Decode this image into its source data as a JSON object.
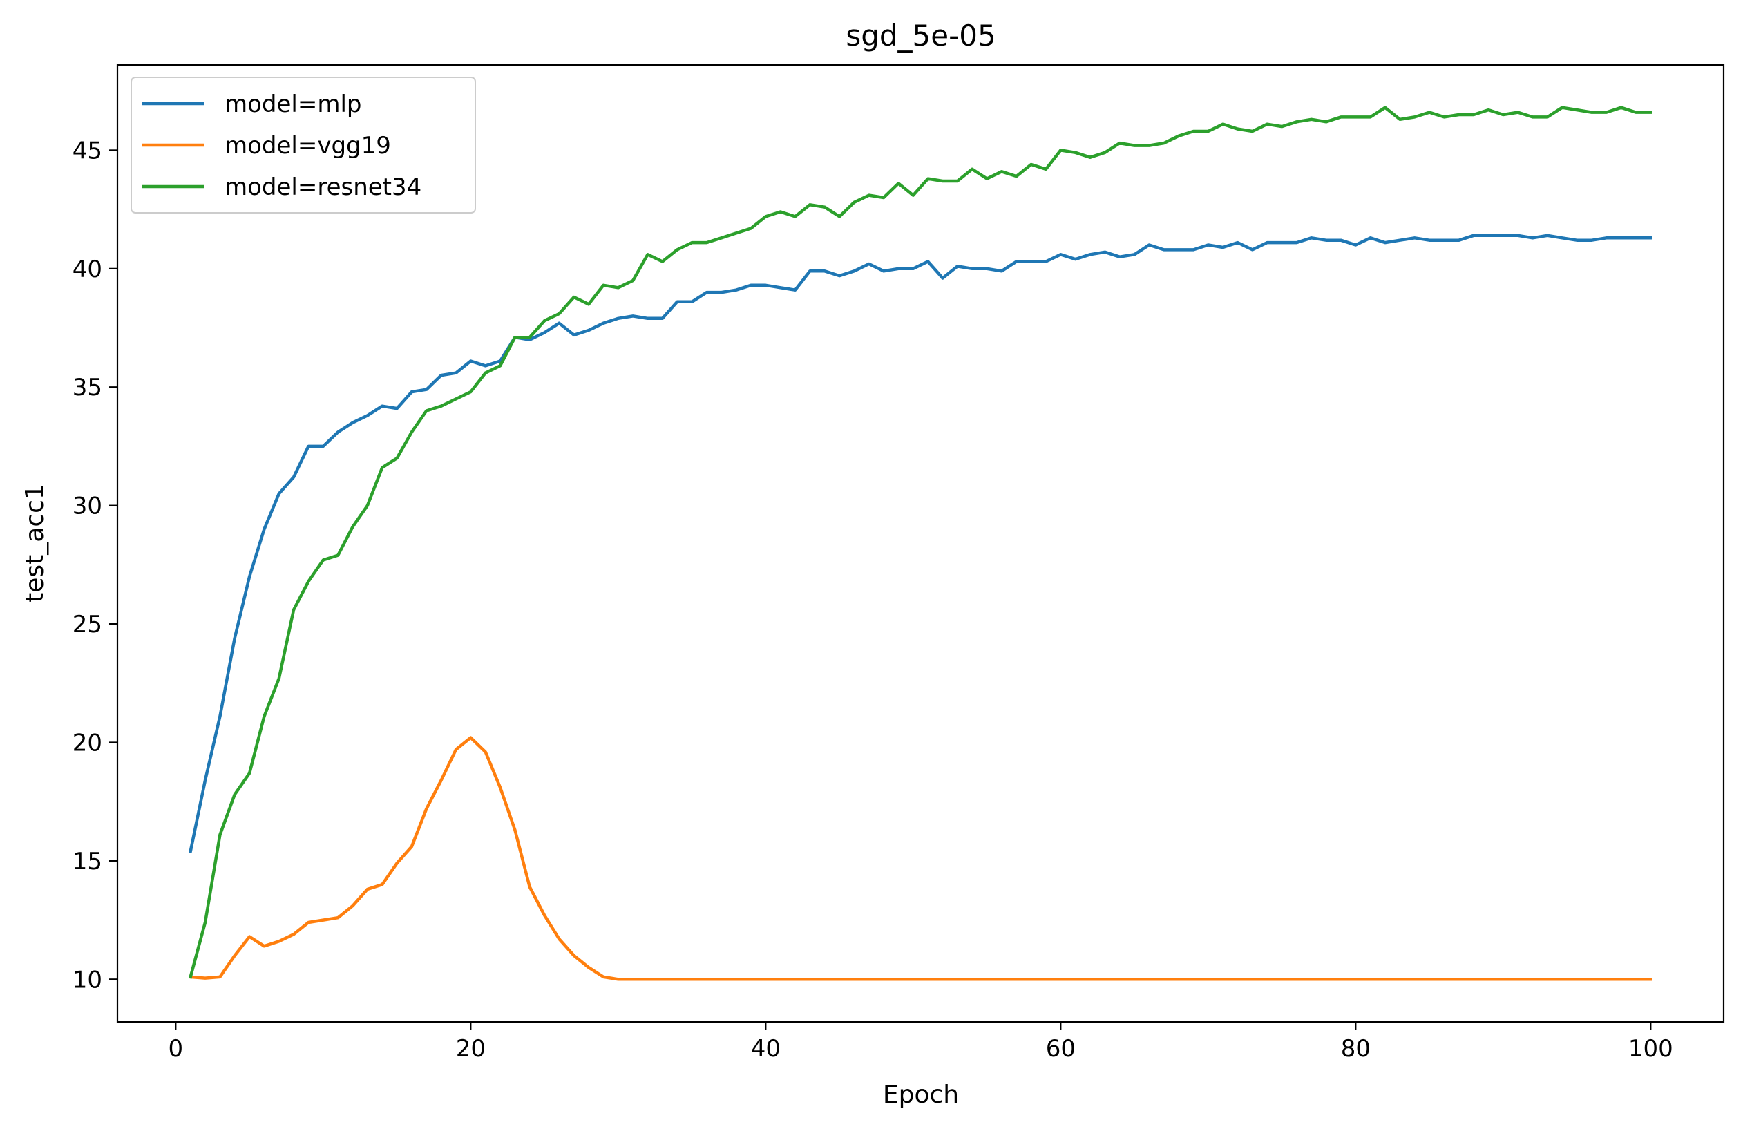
{
  "chart_data": {
    "type": "line",
    "title": "sgd_5e-05",
    "xlabel": "Epoch",
    "ylabel": "test_acc1",
    "xlim": [
      -3.95,
      104.95
    ],
    "ylim": [
      8.2,
      48.6
    ],
    "xticks": [
      0,
      20,
      40,
      60,
      80,
      100
    ],
    "yticks": [
      10,
      15,
      20,
      25,
      30,
      35,
      40,
      45
    ],
    "grid": false,
    "legend_position": "upper-left",
    "series": [
      {
        "name": "model=mlp",
        "color": "#1f77b4",
        "x": [
          1,
          2,
          3,
          4,
          5,
          6,
          7,
          8,
          9,
          10,
          11,
          12,
          13,
          14,
          15,
          16,
          17,
          18,
          19,
          20,
          21,
          22,
          23,
          24,
          25,
          26,
          27,
          28,
          29,
          30,
          31,
          32,
          33,
          34,
          35,
          36,
          37,
          38,
          39,
          40,
          41,
          42,
          43,
          44,
          45,
          46,
          47,
          48,
          49,
          50,
          51,
          52,
          53,
          54,
          55,
          56,
          57,
          58,
          59,
          60,
          61,
          62,
          63,
          64,
          65,
          66,
          67,
          68,
          69,
          70,
          71,
          72,
          73,
          74,
          75,
          76,
          77,
          78,
          79,
          80,
          81,
          82,
          83,
          84,
          85,
          86,
          87,
          88,
          89,
          90,
          91,
          92,
          93,
          94,
          95,
          96,
          97,
          98,
          99,
          100
        ],
        "values": [
          15.4,
          18.4,
          21.1,
          24.4,
          27.0,
          29.0,
          30.5,
          31.2,
          32.5,
          32.5,
          33.1,
          33.5,
          33.8,
          34.2,
          34.1,
          34.8,
          34.9,
          35.5,
          35.6,
          36.1,
          35.9,
          36.1,
          37.1,
          37.0,
          37.3,
          37.7,
          37.2,
          37.4,
          37.7,
          37.9,
          38.0,
          37.9,
          37.9,
          38.6,
          38.6,
          39.0,
          39.0,
          39.1,
          39.3,
          39.3,
          39.2,
          39.1,
          39.9,
          39.9,
          39.7,
          39.9,
          40.2,
          39.9,
          40.0,
          40.0,
          40.3,
          39.6,
          40.1,
          40.0,
          40.0,
          39.9,
          40.3,
          40.3,
          40.3,
          40.6,
          40.4,
          40.6,
          40.7,
          40.5,
          40.6,
          41.0,
          40.8,
          40.8,
          40.8,
          41.0,
          40.9,
          41.1,
          40.8,
          41.1,
          41.1,
          41.1,
          41.3,
          41.2,
          41.2,
          41.0,
          41.3,
          41.1,
          41.2,
          41.3,
          41.2,
          41.2,
          41.2,
          41.4,
          41.4,
          41.4,
          41.4,
          41.3,
          41.4,
          41.3,
          41.2,
          41.2,
          41.3,
          41.3,
          41.3,
          41.3
        ]
      },
      {
        "name": "model=vgg19",
        "color": "#ff7f0e",
        "x": [
          1,
          2,
          3,
          4,
          5,
          6,
          7,
          8,
          9,
          10,
          11,
          12,
          13,
          14,
          15,
          16,
          17,
          18,
          19,
          20,
          21,
          22,
          23,
          24,
          25,
          26,
          27,
          28,
          29,
          30,
          31,
          32,
          33,
          34,
          35,
          36,
          37,
          38,
          39,
          40,
          41,
          42,
          43,
          44,
          45,
          46,
          47,
          48,
          49,
          50,
          51,
          52,
          53,
          54,
          55,
          56,
          57,
          58,
          59,
          60,
          61,
          62,
          63,
          64,
          65,
          66,
          67,
          68,
          69,
          70,
          71,
          72,
          73,
          74,
          75,
          76,
          77,
          78,
          79,
          80,
          81,
          82,
          83,
          84,
          85,
          86,
          87,
          88,
          89,
          90,
          91,
          92,
          93,
          94,
          95,
          96,
          97,
          98,
          99,
          100
        ],
        "values": [
          10.1,
          10.05,
          10.1,
          11.0,
          11.8,
          11.4,
          11.6,
          11.9,
          12.4,
          12.5,
          12.6,
          13.1,
          13.8,
          14.0,
          14.9,
          15.6,
          17.2,
          18.4,
          19.7,
          20.2,
          19.6,
          18.1,
          16.3,
          13.9,
          12.7,
          11.7,
          11.0,
          10.5,
          10.1,
          10.0,
          10.0,
          10.0,
          10.0,
          10.0,
          10.0,
          10.0,
          10.0,
          10.0,
          10.0,
          10.0,
          10.0,
          10.0,
          10.0,
          10.0,
          10.0,
          10.0,
          10.0,
          10.0,
          10.0,
          10.0,
          10.0,
          10.0,
          10.0,
          10.0,
          10.0,
          10.0,
          10.0,
          10.0,
          10.0,
          10.0,
          10.0,
          10.0,
          10.0,
          10.0,
          10.0,
          10.0,
          10.0,
          10.0,
          10.0,
          10.0,
          10.0,
          10.0,
          10.0,
          10.0,
          10.0,
          10.0,
          10.0,
          10.0,
          10.0,
          10.0,
          10.0,
          10.0,
          10.0,
          10.0,
          10.0,
          10.0,
          10.0,
          10.0,
          10.0,
          10.0,
          10.0,
          10.0,
          10.0,
          10.0,
          10.0,
          10.0,
          10.0,
          10.0,
          10.0,
          10.0
        ]
      },
      {
        "name": "model=resnet34",
        "color": "#2ca02c",
        "x": [
          1,
          2,
          3,
          4,
          5,
          6,
          7,
          8,
          9,
          10,
          11,
          12,
          13,
          14,
          15,
          16,
          17,
          18,
          19,
          20,
          21,
          22,
          23,
          24,
          25,
          26,
          27,
          28,
          29,
          30,
          31,
          32,
          33,
          34,
          35,
          36,
          37,
          38,
          39,
          40,
          41,
          42,
          43,
          44,
          45,
          46,
          47,
          48,
          49,
          50,
          51,
          52,
          53,
          54,
          55,
          56,
          57,
          58,
          59,
          60,
          61,
          62,
          63,
          64,
          65,
          66,
          67,
          68,
          69,
          70,
          71,
          72,
          73,
          74,
          75,
          76,
          77,
          78,
          79,
          80,
          81,
          82,
          83,
          84,
          85,
          86,
          87,
          88,
          89,
          90,
          91,
          92,
          93,
          94,
          95,
          96,
          97,
          98,
          99,
          100
        ],
        "values": [
          10.1,
          12.4,
          16.1,
          17.8,
          18.7,
          21.1,
          22.7,
          25.6,
          26.8,
          27.7,
          27.9,
          29.1,
          30.0,
          31.6,
          32.0,
          33.1,
          34.0,
          34.2,
          34.5,
          34.8,
          35.6,
          35.9,
          37.1,
          37.1,
          37.8,
          38.1,
          38.8,
          38.5,
          39.3,
          39.2,
          39.5,
          40.6,
          40.3,
          40.8,
          41.1,
          41.1,
          41.3,
          41.5,
          41.7,
          42.2,
          42.4,
          42.2,
          42.7,
          42.6,
          42.2,
          42.8,
          43.1,
          43.0,
          43.6,
          43.1,
          43.8,
          43.7,
          43.7,
          44.2,
          43.8,
          44.1,
          43.9,
          44.4,
          44.2,
          45.0,
          44.9,
          44.7,
          44.9,
          45.3,
          45.2,
          45.2,
          45.3,
          45.6,
          45.8,
          45.8,
          46.1,
          45.9,
          45.8,
          46.1,
          46.0,
          46.2,
          46.3,
          46.2,
          46.4,
          46.4,
          46.4,
          46.8,
          46.3,
          46.4,
          46.6,
          46.4,
          46.5,
          46.5,
          46.7,
          46.5,
          46.6,
          46.4,
          46.4,
          46.8,
          46.7,
          46.6,
          46.6,
          46.8,
          46.6,
          46.6
        ]
      }
    ]
  }
}
